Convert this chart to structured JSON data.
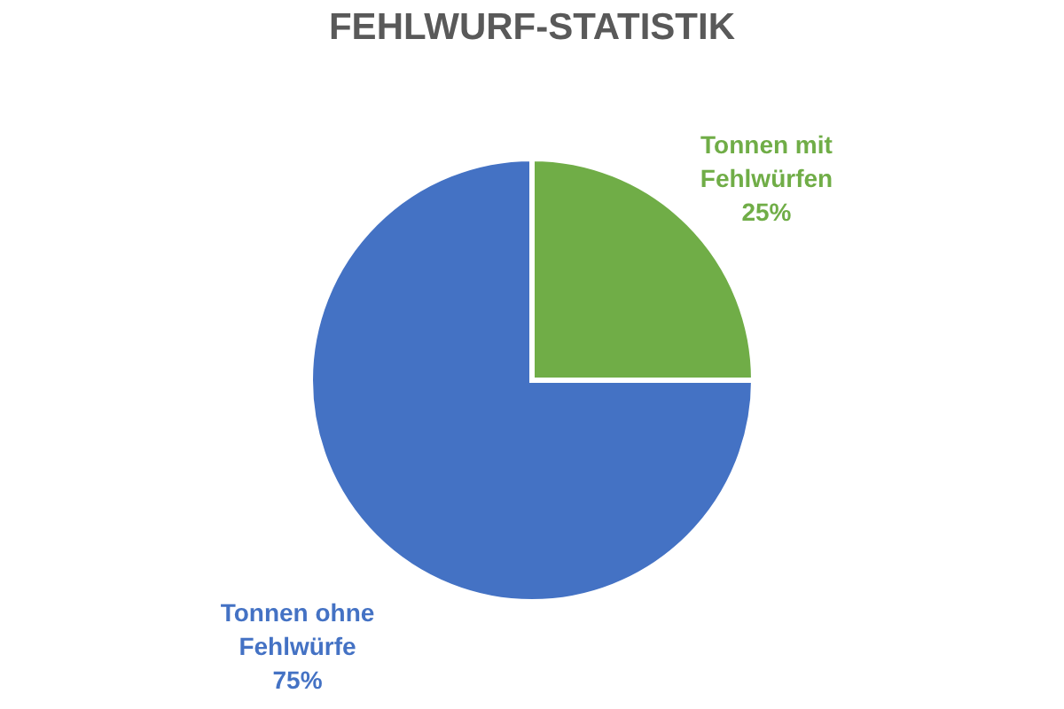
{
  "chart_data": {
    "type": "pie",
    "title": "FEHLWURF-STATISTIK",
    "categories": [
      "Tonnen mit Fehlwürfen",
      "Tonnen ohne Fehlwürfe"
    ],
    "values": [
      25,
      75
    ],
    "colors": [
      "#70ad47",
      "#4472c4"
    ],
    "value_labels": [
      "25%",
      "75%"
    ],
    "legend": false
  }
}
